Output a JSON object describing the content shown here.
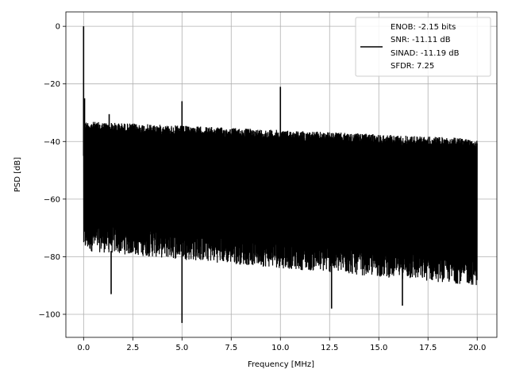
{
  "chart_data": {
    "type": "line",
    "xlabel": "Frequency [MHz]",
    "ylabel": "PSD [dB]",
    "xlim": [
      -0.9,
      21.0
    ],
    "ylim": [
      -108,
      5
    ],
    "grid": true,
    "legend_position": "top-right",
    "x_ticks": [
      "0.0",
      "2.5",
      "5.0",
      "7.5",
      "10.0",
      "12.5",
      "15.0",
      "17.5",
      "20.0"
    ],
    "x_tick_values": [
      0,
      2.5,
      5,
      7.5,
      10,
      12.5,
      15,
      17.5,
      20
    ],
    "y_ticks": [
      "0",
      "−20",
      "−40",
      "−60",
      "−80",
      "−100"
    ],
    "y_tick_values": [
      0,
      -20,
      -40,
      -60,
      -80,
      -100
    ],
    "series": [
      {
        "color": "#000000",
        "x_range": [
          0,
          20
        ],
        "noise_floor_top": [
          -33,
          -39
        ],
        "noise_floor_bottom": [
          -73,
          -85
        ],
        "peaks": [
          {
            "x": 0.0,
            "y": 0
          },
          {
            "x": 0.05,
            "y": -25
          },
          {
            "x": 1.3,
            "y": -30.5
          },
          {
            "x": 5.0,
            "y": -26
          },
          {
            "x": 10.0,
            "y": -21
          },
          {
            "x": 5.0,
            "y": -103
          },
          {
            "x": 1.4,
            "y": -93
          },
          {
            "x": 12.6,
            "y": -98
          },
          {
            "x": 16.2,
            "y": -97
          }
        ]
      }
    ],
    "legend": {
      "lines": [
        "ENOB: -2.15 bits",
        "SNR: -11.11 dB",
        "SINAD: -11.19 dB",
        "SFDR: 7.25"
      ]
    }
  }
}
